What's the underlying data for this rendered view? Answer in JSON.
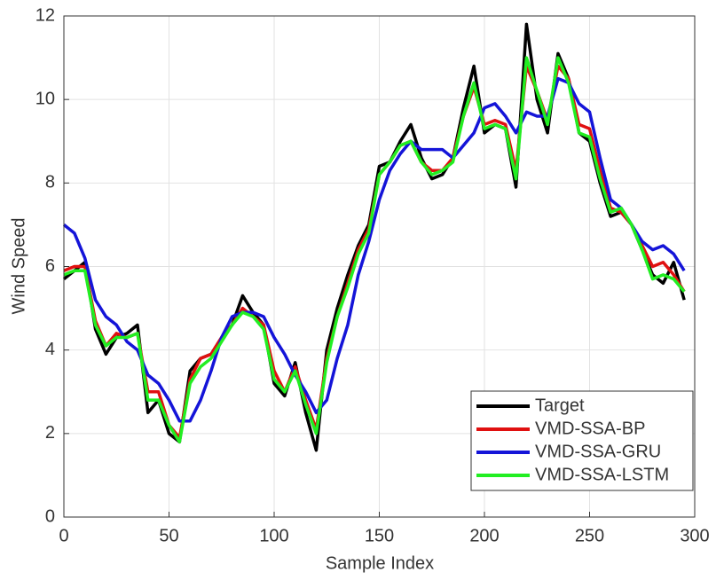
{
  "chart_data": {
    "type": "line",
    "xlabel": "Sample Index",
    "ylabel": "Wind Speed",
    "x": [
      0,
      5,
      10,
      15,
      20,
      25,
      30,
      35,
      40,
      45,
      50,
      55,
      60,
      65,
      70,
      75,
      80,
      85,
      90,
      95,
      100,
      105,
      110,
      115,
      120,
      125,
      130,
      135,
      140,
      145,
      150,
      155,
      160,
      165,
      170,
      175,
      180,
      185,
      190,
      195,
      200,
      205,
      210,
      215,
      220,
      225,
      230,
      235,
      240,
      245,
      250,
      255,
      260,
      265,
      270,
      275,
      280,
      285,
      290,
      295
    ],
    "series": [
      {
        "name": "Target",
        "color": "#000000",
        "values": [
          5.7,
          5.9,
          6.1,
          4.5,
          3.9,
          4.3,
          4.4,
          4.6,
          2.5,
          2.8,
          2.0,
          1.8,
          3.5,
          3.8,
          3.9,
          4.3,
          4.6,
          5.3,
          4.9,
          4.6,
          3.2,
          2.9,
          3.7,
          2.5,
          1.6,
          4.0,
          5.0,
          5.8,
          6.5,
          7.0,
          8.4,
          8.5,
          9.0,
          9.4,
          8.6,
          8.1,
          8.2,
          8.6,
          9.8,
          10.8,
          9.2,
          9.4,
          9.3,
          7.9,
          11.8,
          10.0,
          9.2,
          11.1,
          10.5,
          9.2,
          9.0,
          8.0,
          7.2,
          7.3,
          7.0,
          6.4,
          5.8,
          5.6,
          6.1,
          5.2
        ]
      },
      {
        "name": "VMD-SSA-BP",
        "color": "#e01010",
        "values": [
          5.9,
          6.0,
          6.0,
          4.7,
          4.1,
          4.4,
          4.3,
          4.4,
          3.0,
          3.0,
          2.2,
          1.9,
          3.3,
          3.8,
          3.9,
          4.3,
          4.6,
          5.0,
          4.8,
          4.6,
          3.5,
          3.0,
          3.6,
          2.8,
          2.1,
          3.8,
          4.8,
          5.6,
          6.4,
          6.9,
          8.2,
          8.5,
          8.9,
          9.0,
          8.5,
          8.3,
          8.3,
          8.6,
          9.6,
          10.3,
          9.4,
          9.5,
          9.4,
          8.3,
          10.8,
          10.2,
          9.5,
          10.8,
          10.5,
          9.4,
          9.3,
          8.3,
          7.4,
          7.3,
          7.0,
          6.5,
          6.0,
          6.1,
          5.8,
          5.4
        ]
      },
      {
        "name": "VMD-SSA-GRU",
        "color": "#1414d8",
        "values": [
          7.0,
          6.8,
          6.2,
          5.2,
          4.8,
          4.6,
          4.2,
          4.0,
          3.4,
          3.2,
          2.8,
          2.3,
          2.3,
          2.8,
          3.5,
          4.3,
          4.8,
          4.9,
          4.9,
          4.8,
          4.3,
          3.9,
          3.4,
          3.0,
          2.5,
          2.8,
          3.8,
          4.6,
          5.8,
          6.6,
          7.6,
          8.3,
          8.7,
          9.0,
          8.8,
          8.8,
          8.8,
          8.6,
          8.9,
          9.2,
          9.8,
          9.9,
          9.6,
          9.2,
          9.7,
          9.6,
          9.6,
          10.5,
          10.4,
          9.9,
          9.7,
          8.6,
          7.6,
          7.4,
          7.0,
          6.6,
          6.4,
          6.5,
          6.3,
          5.9
        ]
      },
      {
        "name": "VMD-SSA-LSTM",
        "color": "#22ee22",
        "values": [
          5.8,
          5.9,
          5.9,
          4.6,
          4.1,
          4.3,
          4.3,
          4.4,
          2.8,
          2.8,
          2.2,
          1.8,
          3.2,
          3.6,
          3.8,
          4.2,
          4.6,
          4.9,
          4.8,
          4.5,
          3.3,
          3.0,
          3.5,
          2.7,
          2.0,
          3.7,
          4.8,
          5.5,
          6.3,
          6.8,
          8.2,
          8.5,
          8.9,
          9.0,
          8.5,
          8.2,
          8.3,
          8.5,
          9.6,
          10.4,
          9.3,
          9.4,
          9.3,
          8.1,
          11.0,
          10.2,
          9.4,
          11.0,
          10.4,
          9.2,
          9.1,
          8.1,
          7.3,
          7.4,
          7.0,
          6.4,
          5.7,
          5.8,
          5.7,
          5.4
        ]
      }
    ],
    "xlim": [
      0,
      300
    ],
    "xticks": [
      0,
      50,
      100,
      150,
      200,
      250,
      300
    ],
    "ylim": [
      0,
      12
    ],
    "yticks": [
      0,
      2,
      4,
      6,
      8,
      10,
      12
    ],
    "grid": true,
    "legend": "lower right"
  }
}
